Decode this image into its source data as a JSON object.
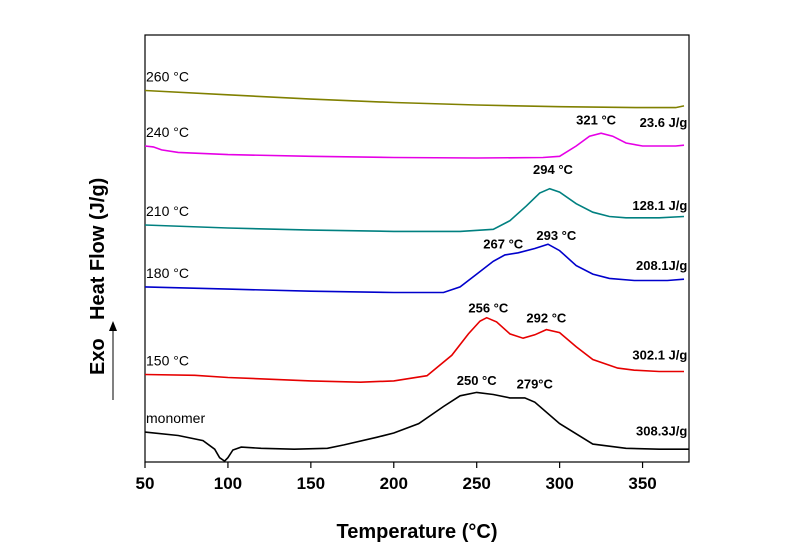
{
  "chart_data": {
    "type": "line",
    "title": "",
    "xlabel": "Temperature (°C)",
    "ylabel": "Heat Flow (J/g)",
    "exo_label": "Exo",
    "xlim": [
      50,
      378
    ],
    "xticks": [
      50,
      100,
      150,
      200,
      250,
      300,
      350
    ],
    "grid": false,
    "series": [
      {
        "name": "260 °C",
        "color": "#808000",
        "points": [
          [
            50,
            0.87
          ],
          [
            100,
            0.86
          ],
          [
            150,
            0.85
          ],
          [
            200,
            0.842
          ],
          [
            250,
            0.836
          ],
          [
            300,
            0.832
          ],
          [
            350,
            0.83
          ],
          [
            370,
            0.83
          ],
          [
            375,
            0.834
          ]
        ],
        "annotations": []
      },
      {
        "name": "240 °C",
        "color": "#e600e6",
        "points": [
          [
            50,
            0.74
          ],
          [
            55,
            0.738
          ],
          [
            60,
            0.731
          ],
          [
            70,
            0.725
          ],
          [
            100,
            0.72
          ],
          [
            150,
            0.716
          ],
          [
            200,
            0.713
          ],
          [
            250,
            0.712
          ],
          [
            290,
            0.713
          ],
          [
            300,
            0.716
          ],
          [
            310,
            0.74
          ],
          [
            318,
            0.763
          ],
          [
            325,
            0.77
          ],
          [
            332,
            0.763
          ],
          [
            340,
            0.747
          ],
          [
            350,
            0.74
          ],
          [
            370,
            0.74
          ],
          [
            375,
            0.742
          ]
        ],
        "annotations": [
          {
            "text": "321 °C",
            "x": 322,
            "y": 0.79,
            "anchor": "middle"
          },
          {
            "text": "23.6 J/g",
            "x": 377,
            "y": 0.785,
            "anchor": "end"
          }
        ]
      },
      {
        "name": "210 °C",
        "color": "#008080",
        "points": [
          [
            50,
            0.555
          ],
          [
            100,
            0.548
          ],
          [
            150,
            0.543
          ],
          [
            200,
            0.54
          ],
          [
            240,
            0.54
          ],
          [
            260,
            0.545
          ],
          [
            270,
            0.565
          ],
          [
            280,
            0.6
          ],
          [
            288,
            0.63
          ],
          [
            294,
            0.64
          ],
          [
            300,
            0.632
          ],
          [
            310,
            0.605
          ],
          [
            320,
            0.585
          ],
          [
            330,
            0.575
          ],
          [
            340,
            0.572
          ],
          [
            360,
            0.572
          ],
          [
            375,
            0.575
          ]
        ],
        "annotations": [
          {
            "text": "294 °C",
            "x": 296,
            "y": 0.675,
            "anchor": "middle"
          },
          {
            "text": "128.1 J/g",
            "x": 377,
            "y": 0.59,
            "anchor": "end"
          }
        ]
      },
      {
        "name": "180 °C",
        "color": "#0000cc",
        "points": [
          [
            50,
            0.41
          ],
          [
            100,
            0.405
          ],
          [
            150,
            0.4
          ],
          [
            200,
            0.397
          ],
          [
            230,
            0.397
          ],
          [
            240,
            0.41
          ],
          [
            250,
            0.44
          ],
          [
            260,
            0.47
          ],
          [
            267,
            0.485
          ],
          [
            275,
            0.49
          ],
          [
            285,
            0.5
          ],
          [
            293,
            0.51
          ],
          [
            300,
            0.495
          ],
          [
            310,
            0.46
          ],
          [
            320,
            0.44
          ],
          [
            330,
            0.43
          ],
          [
            345,
            0.425
          ],
          [
            365,
            0.425
          ],
          [
            375,
            0.428
          ]
        ],
        "annotations": [
          {
            "text": "267 °C",
            "x": 266,
            "y": 0.5,
            "anchor": "middle"
          },
          {
            "text": "293 °C",
            "x": 298,
            "y": 0.52,
            "anchor": "middle"
          },
          {
            "text": "208.1J/g",
            "x": 377,
            "y": 0.45,
            "anchor": "end"
          }
        ]
      },
      {
        "name": "150 °C",
        "color": "#e60000",
        "points": [
          [
            50,
            0.205
          ],
          [
            80,
            0.203
          ],
          [
            100,
            0.198
          ],
          [
            150,
            0.19
          ],
          [
            180,
            0.187
          ],
          [
            200,
            0.19
          ],
          [
            220,
            0.202
          ],
          [
            235,
            0.25
          ],
          [
            245,
            0.3
          ],
          [
            252,
            0.33
          ],
          [
            256,
            0.338
          ],
          [
            262,
            0.328
          ],
          [
            270,
            0.3
          ],
          [
            278,
            0.29
          ],
          [
            285,
            0.298
          ],
          [
            292,
            0.31
          ],
          [
            300,
            0.303
          ],
          [
            310,
            0.27
          ],
          [
            320,
            0.24
          ],
          [
            335,
            0.22
          ],
          [
            345,
            0.215
          ],
          [
            360,
            0.212
          ],
          [
            375,
            0.212
          ]
        ],
        "annotations": [
          {
            "text": "256 °C",
            "x": 257,
            "y": 0.35,
            "anchor": "middle"
          },
          {
            "text": "292 °C",
            "x": 292,
            "y": 0.327,
            "anchor": "middle"
          },
          {
            "text": "302.1 J/g",
            "x": 377,
            "y": 0.24,
            "anchor": "end"
          }
        ]
      },
      {
        "name": "monomer",
        "color": "#000000",
        "points": [
          [
            50,
            0.07
          ],
          [
            70,
            0.062
          ],
          [
            85,
            0.05
          ],
          [
            92,
            0.03
          ],
          [
            95,
            0.01
          ],
          [
            98,
            0.002
          ],
          [
            100,
            0.01
          ],
          [
            103,
            0.028
          ],
          [
            108,
            0.035
          ],
          [
            120,
            0.032
          ],
          [
            140,
            0.03
          ],
          [
            160,
            0.032
          ],
          [
            170,
            0.04
          ],
          [
            190,
            0.058
          ],
          [
            200,
            0.068
          ],
          [
            215,
            0.09
          ],
          [
            230,
            0.13
          ],
          [
            240,
            0.155
          ],
          [
            250,
            0.163
          ],
          [
            260,
            0.158
          ],
          [
            270,
            0.15
          ],
          [
            279,
            0.15
          ],
          [
            285,
            0.14
          ],
          [
            300,
            0.09
          ],
          [
            320,
            0.042
          ],
          [
            340,
            0.032
          ],
          [
            360,
            0.03
          ],
          [
            378,
            0.03
          ]
        ],
        "annotations": [
          {
            "text": "250 °C",
            "x": 250,
            "y": 0.18,
            "anchor": "middle"
          },
          {
            "text": "279°C",
            "x": 285,
            "y": 0.172,
            "anchor": "middle"
          },
          {
            "text": "308.3J/g",
            "x": 377,
            "y": 0.062,
            "anchor": "end"
          }
        ]
      }
    ],
    "label_x": 50
  }
}
